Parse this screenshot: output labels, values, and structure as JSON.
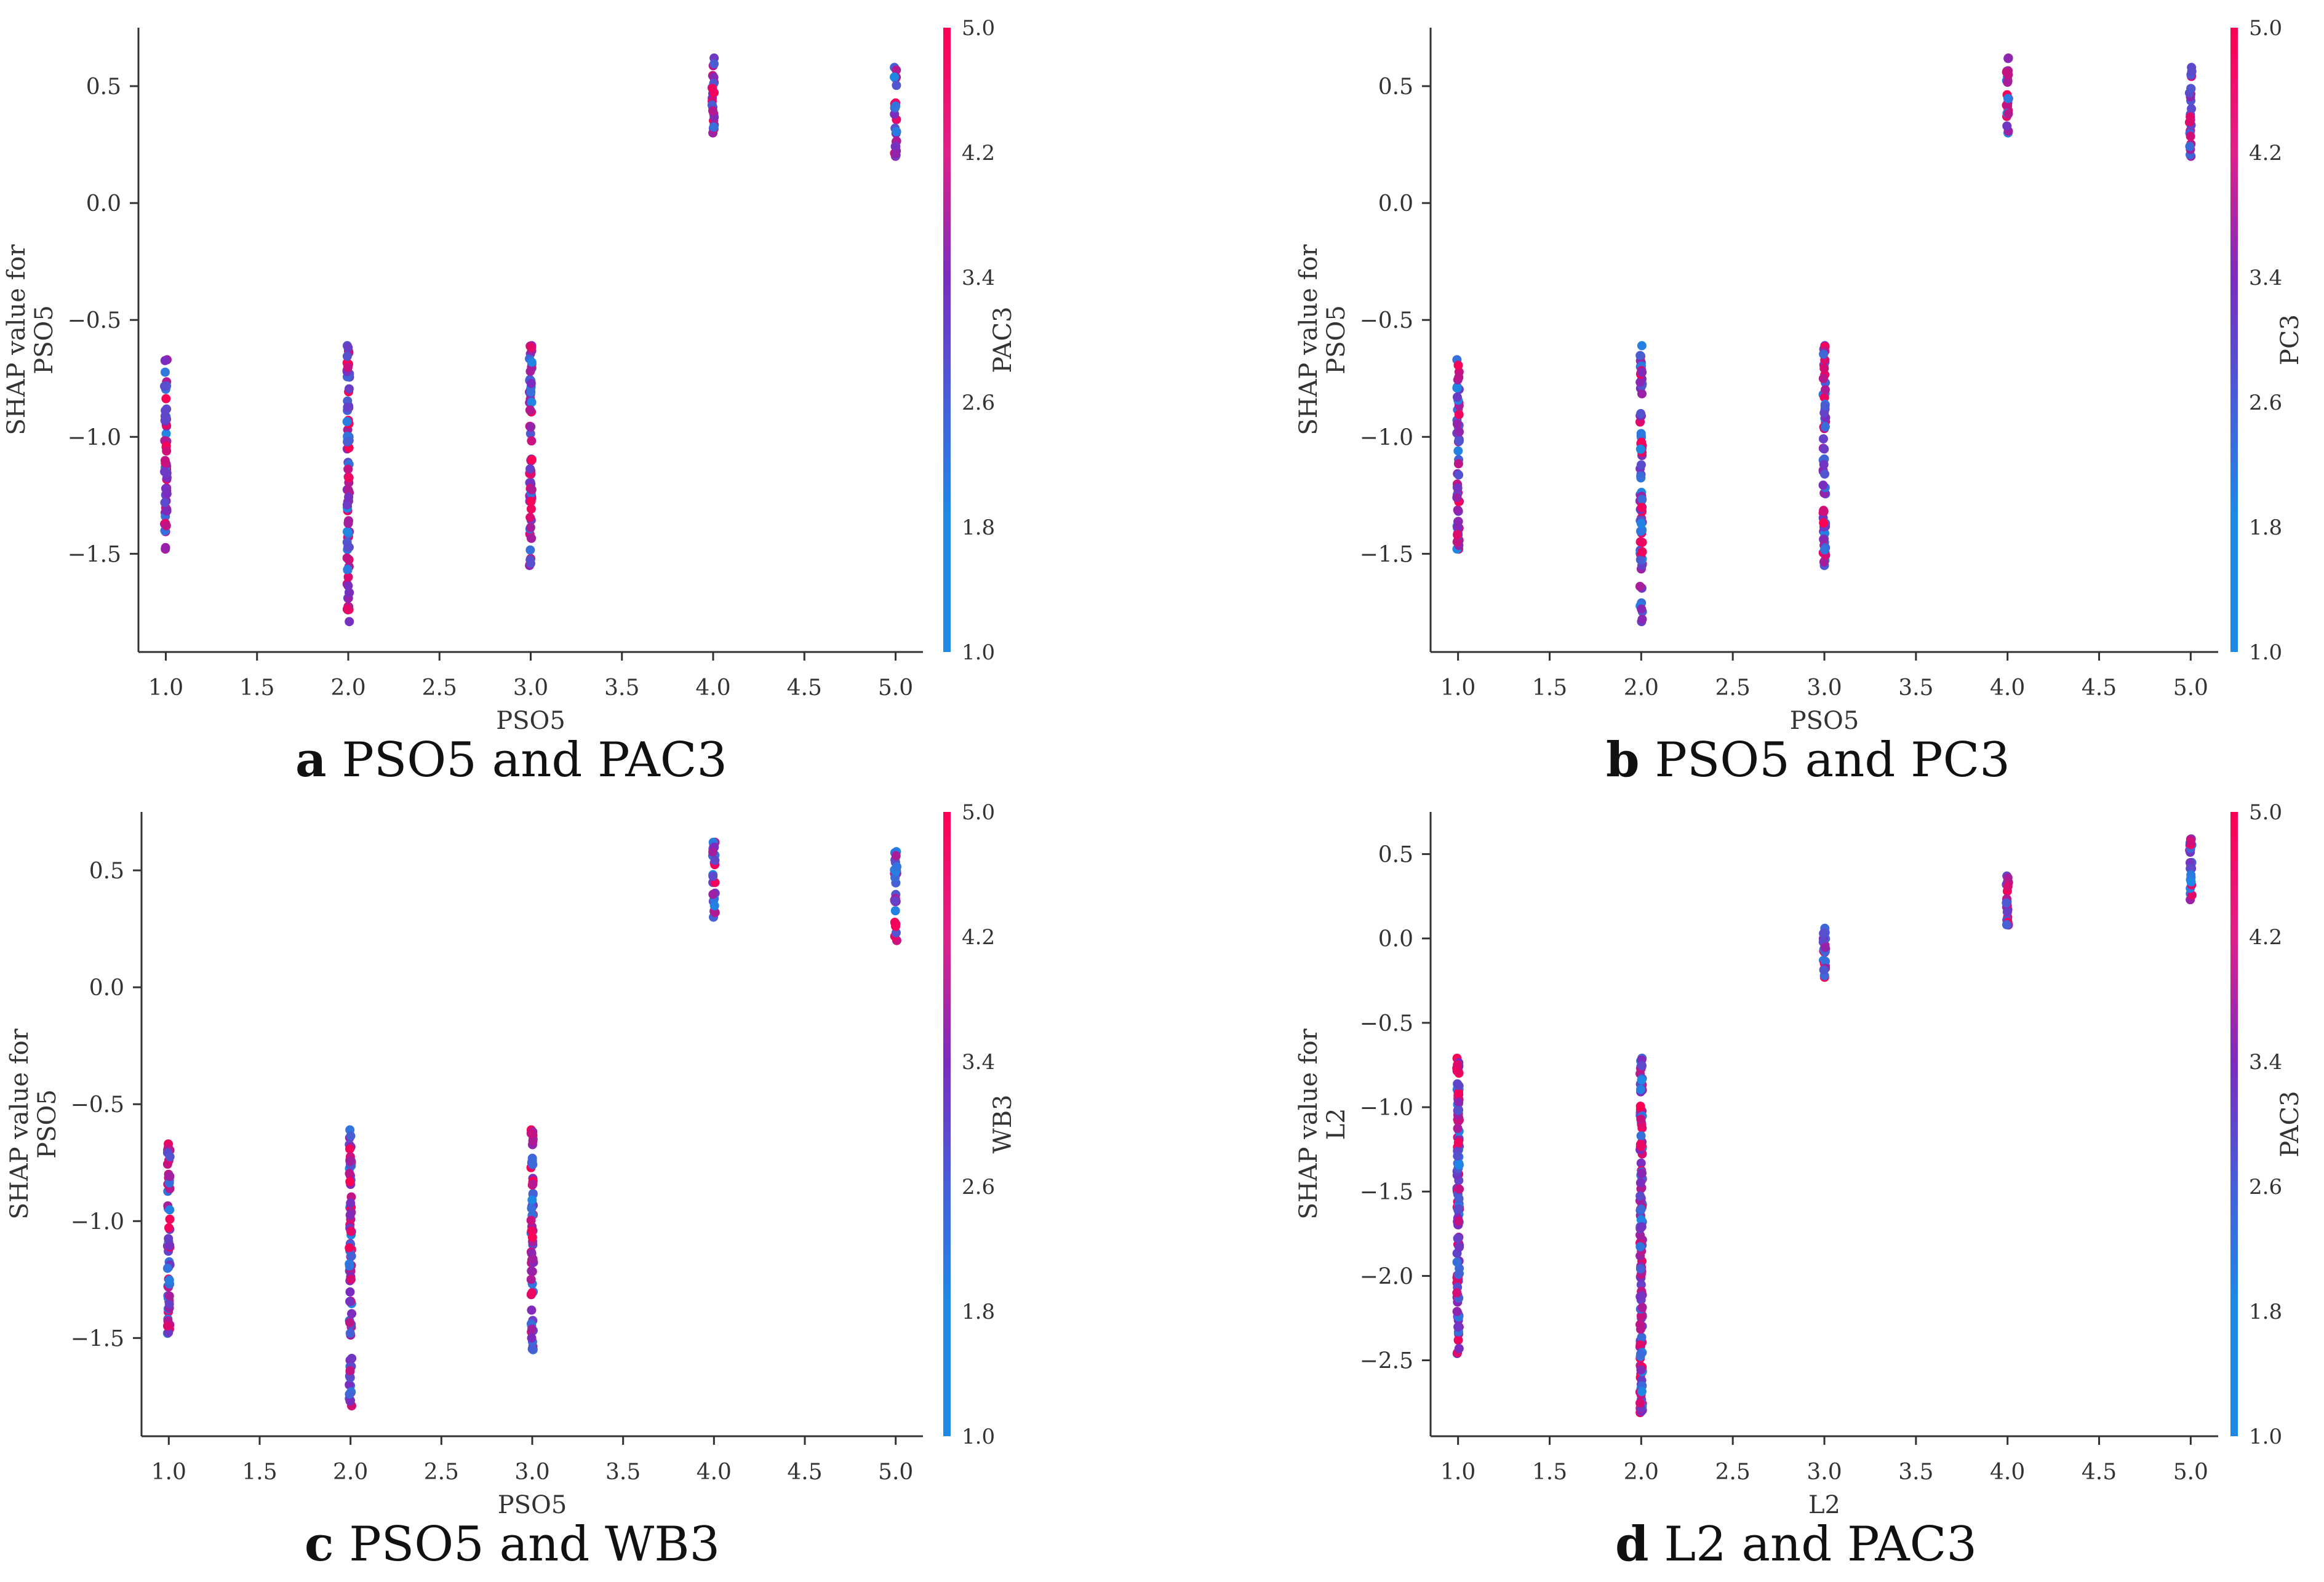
{
  "colors": {
    "low": "#1e88e5",
    "mid": "#7b2cbf",
    "high": "#ff0052",
    "axis": "#333333"
  },
  "chart_data": [
    {
      "type": "scatter",
      "panel": "a",
      "caption_label": "a",
      "caption_text": " PSO5 and PAC3",
      "xlabel": "PSO5",
      "ylabel_line1": "SHAP value for",
      "ylabel_line2": "PSO5",
      "xlim": [
        0.85,
        5.15
      ],
      "ylim": [
        -1.92,
        0.75
      ],
      "xticks": [
        1.0,
        1.5,
        2.0,
        2.5,
        3.0,
        3.5,
        4.0,
        4.5,
        5.0
      ],
      "xtick_labels": [
        "1.0",
        "1.5",
        "2.0",
        "2.5",
        "3.0",
        "3.5",
        "4.0",
        "4.5",
        "5.0"
      ],
      "yticks": [
        -1.5,
        -1.0,
        -0.5,
        0.0,
        0.5
      ],
      "ytick_labels": [
        "−1.5",
        "−1.0",
        "−0.5",
        "0.0",
        "0.5"
      ],
      "colorbar_label": "PAC3",
      "colorbar_ticks": [
        "1.0",
        "1.8",
        "2.6",
        "3.4",
        "4.2",
        "5.0"
      ],
      "clusters": [
        {
          "x": 1.0,
          "ymin": -1.48,
          "ymax": -0.67
        },
        {
          "x": 2.0,
          "ymin": -1.79,
          "ymax": -0.61
        },
        {
          "x": 3.0,
          "ymin": -1.55,
          "ymax": -0.61
        },
        {
          "x": 4.0,
          "ymin": 0.3,
          "ymax": 0.62
        },
        {
          "x": 5.0,
          "ymin": 0.2,
          "ymax": 0.58
        }
      ]
    },
    {
      "type": "scatter",
      "panel": "b",
      "caption_label": "b",
      "caption_text": " PSO5 and PC3",
      "xlabel": "PSO5",
      "ylabel_line1": "SHAP value for",
      "ylabel_line2": "PSO5",
      "xlim": [
        0.85,
        5.15
      ],
      "ylim": [
        -1.92,
        0.75
      ],
      "xticks": [
        1.0,
        1.5,
        2.0,
        2.5,
        3.0,
        3.5,
        4.0,
        4.5,
        5.0
      ],
      "xtick_labels": [
        "1.0",
        "1.5",
        "2.0",
        "2.5",
        "3.0",
        "3.5",
        "4.0",
        "4.5",
        "5.0"
      ],
      "yticks": [
        -1.5,
        -1.0,
        -0.5,
        0.0,
        0.5
      ],
      "ytick_labels": [
        "−1.5",
        "−1.0",
        "−0.5",
        "0.0",
        "0.5"
      ],
      "colorbar_label": "PC3",
      "colorbar_ticks": [
        "1.0",
        "1.8",
        "2.6",
        "3.4",
        "4.2",
        "5.0"
      ],
      "clusters": [
        {
          "x": 1.0,
          "ymin": -1.48,
          "ymax": -0.67
        },
        {
          "x": 2.0,
          "ymin": -1.79,
          "ymax": -0.61
        },
        {
          "x": 3.0,
          "ymin": -1.55,
          "ymax": -0.61
        },
        {
          "x": 4.0,
          "ymin": 0.3,
          "ymax": 0.62
        },
        {
          "x": 5.0,
          "ymin": 0.2,
          "ymax": 0.58
        }
      ]
    },
    {
      "type": "scatter",
      "panel": "c",
      "caption_label": "c",
      "caption_text": " PSO5 and WB3",
      "xlabel": "PSO5",
      "ylabel_line1": "SHAP value for",
      "ylabel_line2": "PSO5",
      "xlim": [
        0.85,
        5.15
      ],
      "ylim": [
        -1.92,
        0.75
      ],
      "xticks": [
        1.0,
        1.5,
        2.0,
        2.5,
        3.0,
        3.5,
        4.0,
        4.5,
        5.0
      ],
      "xtick_labels": [
        "1.0",
        "1.5",
        "2.0",
        "2.5",
        "3.0",
        "3.5",
        "4.0",
        "4.5",
        "5.0"
      ],
      "yticks": [
        -1.5,
        -1.0,
        -0.5,
        0.0,
        0.5
      ],
      "ytick_labels": [
        "−1.5",
        "−1.0",
        "−0.5",
        "0.0",
        "0.5"
      ],
      "colorbar_label": "WB3",
      "colorbar_ticks": [
        "1.0",
        "1.8",
        "2.6",
        "3.4",
        "4.2",
        "5.0"
      ],
      "clusters": [
        {
          "x": 1.0,
          "ymin": -1.48,
          "ymax": -0.67
        },
        {
          "x": 2.0,
          "ymin": -1.79,
          "ymax": -0.61
        },
        {
          "x": 3.0,
          "ymin": -1.55,
          "ymax": -0.61
        },
        {
          "x": 4.0,
          "ymin": 0.3,
          "ymax": 0.62
        },
        {
          "x": 5.0,
          "ymin": 0.2,
          "ymax": 0.58
        }
      ]
    },
    {
      "type": "scatter",
      "panel": "d",
      "caption_label": "d",
      "caption_text": " L2 and PAC3",
      "xlabel": "L2",
      "ylabel_line1": "SHAP value for",
      "ylabel_line2": "L2",
      "xlim": [
        0.85,
        5.15
      ],
      "ylim": [
        -2.95,
        0.75
      ],
      "xticks": [
        1.0,
        1.5,
        2.0,
        2.5,
        3.0,
        3.5,
        4.0,
        4.5,
        5.0
      ],
      "xtick_labels": [
        "1.0",
        "1.5",
        "2.0",
        "2.5",
        "3.0",
        "3.5",
        "4.0",
        "4.5",
        "5.0"
      ],
      "yticks": [
        -2.5,
        -2.0,
        -1.5,
        -1.0,
        -0.5,
        0.0,
        0.5
      ],
      "ytick_labels": [
        "−2.5",
        "−2.0",
        "−1.5",
        "−1.0",
        "−0.5",
        "0.0",
        "0.5"
      ],
      "colorbar_label": "PAC3",
      "colorbar_ticks": [
        "1.0",
        "1.8",
        "2.6",
        "3.4",
        "4.2",
        "5.0"
      ],
      "clusters": [
        {
          "x": 1.0,
          "ymin": -2.46,
          "ymax": -0.71
        },
        {
          "x": 2.0,
          "ymin": -2.81,
          "ymax": -0.71
        },
        {
          "x": 3.0,
          "ymin": -0.23,
          "ymax": 0.06
        },
        {
          "x": 4.0,
          "ymin": 0.08,
          "ymax": 0.37
        },
        {
          "x": 5.0,
          "ymin": 0.23,
          "ymax": 0.59
        }
      ]
    }
  ]
}
